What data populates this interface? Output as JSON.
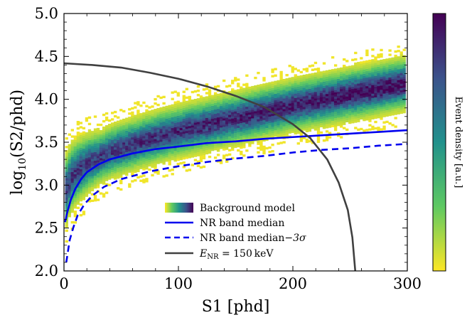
{
  "chart_data": {
    "type": "heatmap",
    "title": "",
    "xlabel": "S1 [phd]",
    "ylabel": "log10(S2/phd)",
    "ylabel_parts": {
      "base": "log",
      "sub": "10",
      "rest": "(S2/phd)"
    },
    "xlim": [
      0,
      300
    ],
    "ylim": [
      2.0,
      5.0
    ],
    "x_ticks": [
      0,
      100,
      200,
      300
    ],
    "x_tick_labels": [
      "0",
      "100",
      "200",
      "300"
    ],
    "y_ticks": [
      2.0,
      2.5,
      3.0,
      3.5,
      4.0,
      4.5,
      5.0
    ],
    "y_tick_labels": [
      "2.0",
      "2.5",
      "3.0",
      "3.5",
      "4.0",
      "4.5",
      "5.0"
    ],
    "grid": false,
    "legend_position": "lower-center",
    "colorbar": {
      "label": "Event density [a.u.]",
      "colormap": "viridis",
      "colors": [
        "#fde725",
        "#5ec962",
        "#21918c",
        "#3b528b",
        "#440154"
      ]
    },
    "background_model": {
      "name": "Background model",
      "description_of_band_center_log10S2": {
        "x": [
          1,
          5,
          10,
          20,
          40,
          60,
          80,
          100,
          150,
          200,
          250,
          300
        ],
        "y": [
          2.95,
          3.08,
          3.15,
          3.25,
          3.38,
          3.47,
          3.55,
          3.62,
          3.77,
          3.92,
          4.05,
          4.18
        ]
      },
      "band_halfwidth_log10S2": 0.3
    },
    "series": [
      {
        "name": "NR band median",
        "color": "#0000ee",
        "style": "solid",
        "x": [
          1,
          3,
          6,
          10,
          15,
          20,
          30,
          40,
          60,
          80,
          100,
          125,
          150,
          175,
          200,
          225,
          250,
          275,
          300
        ],
        "y": [
          2.57,
          2.69,
          2.83,
          2.96,
          3.07,
          3.15,
          3.24,
          3.3,
          3.37,
          3.42,
          3.45,
          3.49,
          3.51,
          3.54,
          3.56,
          3.58,
          3.6,
          3.62,
          3.64
        ]
      },
      {
        "name": "NR band median−3σ",
        "label_parts": {
          "text": "NR band median",
          "suffix": "−3σ"
        },
        "color": "#0000ee",
        "style": "dashed",
        "x": [
          2,
          5,
          8,
          12,
          18,
          25,
          35,
          50,
          75,
          100,
          125,
          150,
          175,
          200,
          225,
          250,
          275,
          300
        ],
        "y": [
          2.1,
          2.36,
          2.5,
          2.65,
          2.78,
          2.88,
          2.98,
          3.07,
          3.16,
          3.22,
          3.27,
          3.31,
          3.34,
          3.38,
          3.41,
          3.43,
          3.46,
          3.48
        ]
      },
      {
        "name": "E_NR = 150 keV",
        "label_parts": {
          "main": "E",
          "sub": "NR",
          "rest": " = 150 keV"
        },
        "color": "#404040",
        "style": "solid",
        "x": [
          0,
          25,
          50,
          75,
          100,
          125,
          150,
          175,
          200,
          215,
          230,
          240,
          248,
          252,
          254.5
        ],
        "y": [
          4.42,
          4.4,
          4.37,
          4.31,
          4.24,
          4.15,
          4.04,
          3.91,
          3.71,
          3.55,
          3.3,
          3.03,
          2.71,
          2.39,
          2.0
        ]
      }
    ]
  }
}
